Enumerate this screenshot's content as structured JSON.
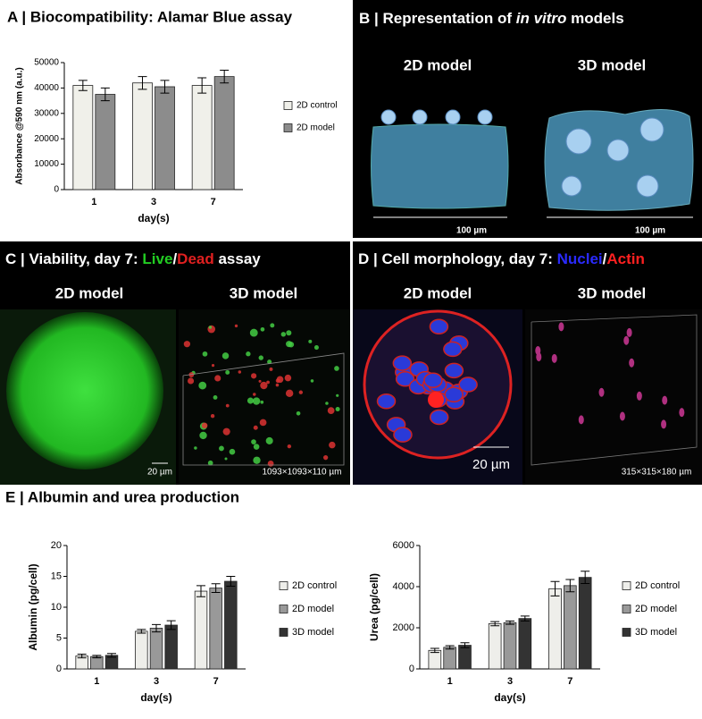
{
  "chart_data": [
    {
      "type": "bar",
      "title": "A | Biocompatibility: Alamar Blue assay",
      "categories": [
        "1",
        "3",
        "7"
      ],
      "xlabel": "day(s)",
      "ylabel": "Absorbance @590 nm (a.u.)",
      "ylim": [
        0,
        50000
      ],
      "yticks": [
        0,
        10000,
        20000,
        30000,
        40000,
        50000
      ],
      "series": [
        {
          "name": "2D control",
          "color": "#f0f0ea",
          "values": [
            41000,
            42000,
            41000
          ],
          "errors": [
            2000,
            2500,
            3000
          ]
        },
        {
          "name": "2D model",
          "color": "#8c8c8c",
          "values": [
            37500,
            40500,
            44500
          ],
          "errors": [
            2500,
            2500,
            2500
          ]
        }
      ]
    },
    {
      "type": "bar",
      "categories": [
        "1",
        "3",
        "7"
      ],
      "xlabel": "day(s)",
      "ylabel": "Albumin (pg/cell)",
      "ylim": [
        0,
        20
      ],
      "yticks": [
        0,
        5,
        10,
        15,
        20
      ],
      "series": [
        {
          "name": "2D control",
          "color": "#eeeeea",
          "values": [
            2.1,
            6.1,
            12.6
          ],
          "errors": [
            0.3,
            0.3,
            0.9
          ]
        },
        {
          "name": "2D model",
          "color": "#999999",
          "values": [
            2.0,
            6.6,
            13.1
          ],
          "errors": [
            0.2,
            0.6,
            0.7
          ]
        },
        {
          "name": "3D model",
          "color": "#333333",
          "values": [
            2.2,
            7.1,
            14.2
          ],
          "errors": [
            0.3,
            0.7,
            0.8
          ]
        }
      ]
    },
    {
      "type": "bar",
      "categories": [
        "1",
        "3",
        "7"
      ],
      "xlabel": "day(s)",
      "ylabel": "Urea (pg/cell)",
      "ylim": [
        0,
        6000
      ],
      "yticks": [
        0,
        2000,
        4000,
        6000
      ],
      "series": [
        {
          "name": "2D control",
          "color": "#eeeeea",
          "values": [
            900,
            2200,
            3900
          ],
          "errors": [
            100,
            100,
            350
          ]
        },
        {
          "name": "2D model",
          "color": "#999999",
          "values": [
            1050,
            2250,
            4050
          ],
          "errors": [
            80,
            80,
            300
          ]
        },
        {
          "name": "3D model",
          "color": "#333333",
          "values": [
            1150,
            2450,
            4450
          ],
          "errors": [
            120,
            120,
            300
          ]
        }
      ]
    }
  ],
  "panel_b": {
    "title_parts": [
      "B | Representation of ",
      "in vitro",
      " models"
    ],
    "labels": [
      "2D model",
      "3D model"
    ],
    "scale_labels": [
      "100 µm",
      "100 µm"
    ]
  },
  "panel_c": {
    "title_parts": [
      "C | Viability, day 7: ",
      "Live",
      "/",
      "Dead",
      " assay"
    ],
    "labels": [
      "2D model",
      "3D model"
    ],
    "scale_labels": [
      "20 µm",
      "1093×1093×110 µm"
    ]
  },
  "panel_d": {
    "title_parts": [
      "D | Cell morphology, day 7: ",
      "Nuclei",
      "/",
      "Actin"
    ],
    "labels": [
      "2D model",
      "3D model"
    ],
    "scale_labels": [
      "20 µm",
      "315×315×180 µm"
    ]
  },
  "panel_e": {
    "title": "E | Albumin and urea production"
  }
}
